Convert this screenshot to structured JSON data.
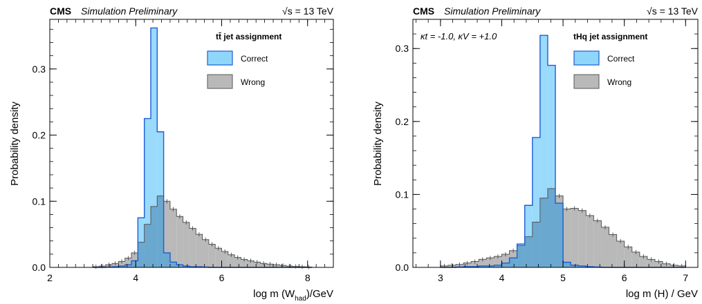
{
  "panels": [
    {
      "experiment": "CMS",
      "status": "Simulation Preliminary",
      "energy_label": "√s = 13 TeV",
      "legend_title": "tt̄ jet assignment",
      "kappa_label": "",
      "xlabel_prefix": "log m (W",
      "xlabel_sub": "had",
      "xlabel_suffix": ")/GeV",
      "ylabel": "Probability density"
    },
    {
      "experiment": "CMS",
      "status": "Simulation Preliminary",
      "energy_label": "√s = 13 TeV",
      "legend_title": "tHq jet assignment",
      "kappa_label": "κt = -1.0,  κV = +1.0",
      "xlabel_prefix": "log m (H) / GeV",
      "xlabel_sub": "",
      "xlabel_suffix": "",
      "ylabel": "Probability density"
    }
  ],
  "colors": {
    "correct_fill": "#8fd6fb",
    "correct_line": "#1f5bd6",
    "wrong_fill": "#b9b9b9",
    "wrong_line": "#555555",
    "overlap_fill": "#6aa8cf"
  },
  "chart_data": [
    {
      "type": "histogram",
      "xlim": [
        2.0,
        8.6
      ],
      "ylim": [
        0.0,
        0.375
      ],
      "x_ticks": [
        2,
        4,
        6,
        8
      ],
      "y_ticks": [
        0.0,
        0.1,
        0.2,
        0.3
      ],
      "y_tick_labels": [
        "0.0",
        "0.1",
        "0.2",
        "0.3"
      ],
      "legend_position": "top-right",
      "grid": false,
      "bin_edges": [
        3.0,
        3.15,
        3.3,
        3.45,
        3.6,
        3.75,
        3.9,
        4.05,
        4.2,
        4.35,
        4.5,
        4.65,
        4.8,
        4.95,
        5.1,
        5.25,
        5.4,
        5.55,
        5.7,
        5.85,
        6.0,
        6.15,
        6.3,
        6.45,
        6.6,
        6.75,
        6.9,
        7.05,
        7.2,
        7.35,
        7.5,
        7.65,
        7.8,
        7.95,
        8.1
      ],
      "series": [
        {
          "name": "Correct",
          "values": [
            0.0,
            0.0,
            0.0005,
            0.001,
            0.002,
            0.004,
            0.01,
            0.075,
            0.225,
            0.362,
            0.205,
            0.022,
            0.008,
            0.004,
            0.002,
            0.001,
            0.001,
            0.0005,
            0.0,
            0.0,
            0.0,
            0.0,
            0.0,
            0.0,
            0.0,
            0.0,
            0.0,
            0.0,
            0.0,
            0.0,
            0.0,
            0.0,
            0.0,
            0.0
          ]
        },
        {
          "name": "Wrong",
          "values": [
            0.001,
            0.002,
            0.004,
            0.006,
            0.009,
            0.014,
            0.022,
            0.038,
            0.065,
            0.092,
            0.108,
            0.1,
            0.088,
            0.077,
            0.068,
            0.059,
            0.05,
            0.042,
            0.035,
            0.029,
            0.024,
            0.019,
            0.015,
            0.012,
            0.01,
            0.008,
            0.006,
            0.005,
            0.004,
            0.003,
            0.002,
            0.0015,
            0.001,
            0.0005
          ]
        }
      ]
    },
    {
      "type": "histogram",
      "xlim": [
        2.55,
        7.2
      ],
      "ylim": [
        0.0,
        0.34
      ],
      "x_ticks": [
        3,
        4,
        5,
        6,
        7
      ],
      "y_ticks": [
        0.0,
        0.1,
        0.2,
        0.3
      ],
      "y_tick_labels": [
        "0.0",
        "0.1",
        "0.2",
        "0.3"
      ],
      "legend_position": "top-right",
      "grid": false,
      "bin_edges": [
        3.0,
        3.125,
        3.25,
        3.375,
        3.5,
        3.625,
        3.75,
        3.875,
        4.0,
        4.125,
        4.25,
        4.375,
        4.5,
        4.625,
        4.75,
        4.875,
        5.0,
        5.125,
        5.25,
        5.375,
        5.5,
        5.625,
        5.75,
        5.875,
        6.0,
        6.125,
        6.25,
        6.375,
        6.5,
        6.625,
        6.75,
        6.875,
        7.0
      ],
      "series": [
        {
          "name": "Correct",
          "values": [
            0.0,
            0.0,
            0.0005,
            0.001,
            0.001,
            0.002,
            0.002,
            0.003,
            0.006,
            0.013,
            0.032,
            0.085,
            0.178,
            0.318,
            0.277,
            0.088,
            0.007,
            0.003,
            0.002,
            0.001,
            0.0005,
            0.0,
            0.0,
            0.0,
            0.0,
            0.0,
            0.0,
            0.0,
            0.0,
            0.0,
            0.0,
            0.0
          ]
        },
        {
          "name": "Wrong",
          "values": [
            0.002,
            0.003,
            0.004,
            0.006,
            0.008,
            0.011,
            0.013,
            0.015,
            0.018,
            0.023,
            0.03,
            0.042,
            0.062,
            0.095,
            0.108,
            0.098,
            0.08,
            0.081,
            0.078,
            0.071,
            0.064,
            0.055,
            0.045,
            0.036,
            0.028,
            0.021,
            0.015,
            0.011,
            0.008,
            0.005,
            0.003,
            0.002
          ]
        }
      ]
    }
  ]
}
